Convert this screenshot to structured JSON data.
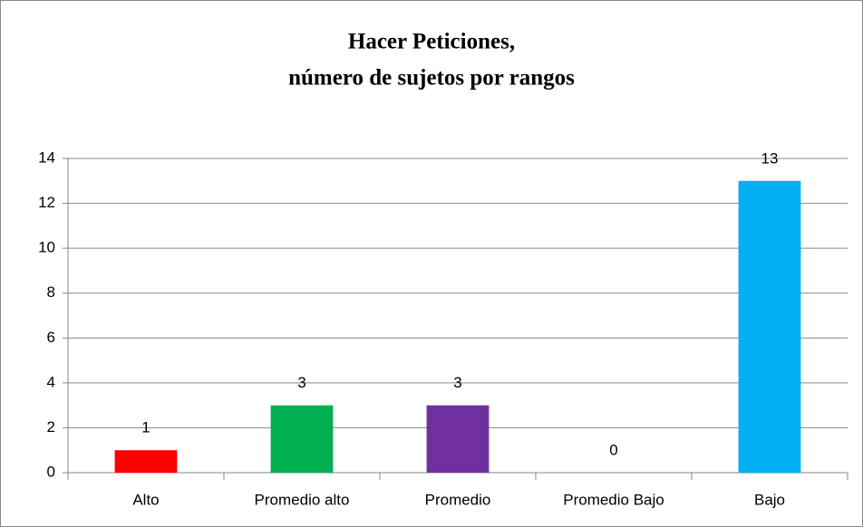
{
  "chart_data": {
    "type": "bar",
    "title": [
      "Hacer Peticiones,",
      "número de sujetos por rangos"
    ],
    "categories": [
      "Alto",
      "Promedio alto",
      "Promedio",
      "Promedio Bajo",
      "Bajo"
    ],
    "values": [
      1,
      3,
      3,
      0,
      13
    ],
    "colors": [
      "#ff0000",
      "#00b050",
      "#7030a0",
      "#ffc000",
      "#00b0f0"
    ],
    "ylim": [
      0,
      14
    ],
    "yticks": [
      0,
      2,
      4,
      6,
      8,
      10,
      12,
      14
    ],
    "grid": true
  }
}
